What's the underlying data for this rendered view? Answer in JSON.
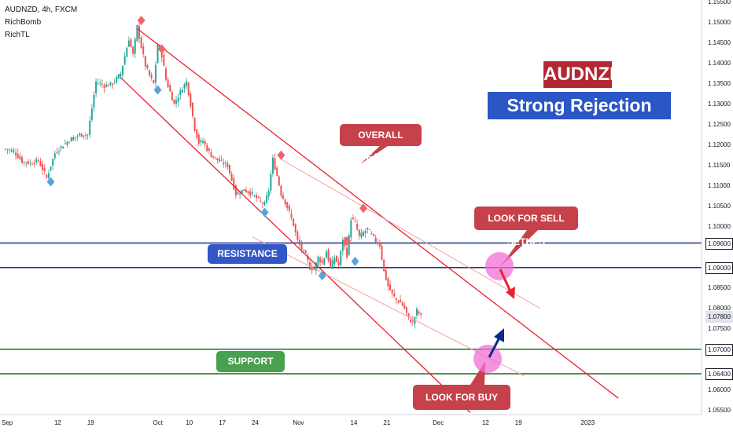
{
  "header": {
    "symbol": "AUDNZD, 4h, FXCM",
    "indicator1": "RichBomb",
    "indicator2": "RichTL"
  },
  "titles": {
    "main": "AUDNZD",
    "sub": "Strong Rejection Zones"
  },
  "annotations": {
    "overall_bearish": "OVERALL BEARISH",
    "sell_setups": "LOOK FOR SELL SETUPS",
    "buy_setups": "LOOK FOR BUY SETUPS",
    "resistance_zone": "RESISTANCE ZONE",
    "support_zone": "SUPPORT ZONE"
  },
  "colors": {
    "up": "#26a69a",
    "down": "#ef5350",
    "channel": "#e8212d",
    "channel_light": "#f3a0a3",
    "resistance": "#1b2f8f",
    "support": "#1f6b21",
    "highlight": "#f06fd6",
    "callout_red": "#c6414a",
    "callout_blue": "#3457c7",
    "callout_green": "#48a14f",
    "marker_red": "#f0646b",
    "marker_blue": "#5aa2dc"
  },
  "chart_data": {
    "type": "candlestick",
    "y_ticks": [
      "1.15500",
      "1.15000",
      "1.14500",
      "1.14000",
      "1.13500",
      "1.13000",
      "1.12500",
      "1.12000",
      "1.11500",
      "1.11000",
      "1.10500",
      "1.10000",
      "1.08500",
      "1.08000",
      "1.07500",
      "1.06000",
      "1.05500"
    ],
    "y_tick_values": [
      1.155,
      1.15,
      1.145,
      1.14,
      1.135,
      1.13,
      1.125,
      1.12,
      1.115,
      1.11,
      1.105,
      1.1,
      1.085,
      1.08,
      1.075,
      1.06,
      1.055
    ],
    "ylim": [
      1.054,
      1.1555
    ],
    "x_ticks": [
      "Sep",
      "12",
      "19",
      "Oct",
      "10",
      "17",
      "24",
      "Nov",
      "14",
      "21",
      "Dec",
      "12",
      "19",
      "2023"
    ],
    "x_tick_index": [
      0,
      13,
      21,
      37,
      45,
      53,
      61,
      71,
      85,
      93,
      105,
      117,
      125,
      141
    ],
    "price_levels": [
      {
        "label": "1.09600",
        "value": 1.096,
        "kind": "resistance"
      },
      {
        "label": "1.09000",
        "value": 1.09,
        "kind": "resistance"
      },
      {
        "label": "1.07800",
        "value": 1.078,
        "kind": "last"
      },
      {
        "label": "1.07000",
        "value": 1.07,
        "kind": "support"
      },
      {
        "label": "1.06400",
        "value": 1.064,
        "kind": "support"
      }
    ],
    "close_path": [
      [
        0,
        1.119
      ],
      [
        2,
        1.1185
      ],
      [
        4,
        1.116
      ],
      [
        6,
        1.1155
      ],
      [
        8,
        1.1162
      ],
      [
        10,
        1.112
      ],
      [
        12,
        1.118
      ],
      [
        14,
        1.12
      ],
      [
        16,
        1.1215
      ],
      [
        18,
        1.1225
      ],
      [
        20,
        1.1225
      ],
      [
        22,
        1.1355
      ],
      [
        24,
        1.1345
      ],
      [
        26,
        1.135
      ],
      [
        28,
        1.1375
      ],
      [
        30,
        1.146
      ],
      [
        31,
        1.142
      ],
      [
        32,
        1.149
      ],
      [
        33,
        1.144
      ],
      [
        34,
        1.1395
      ],
      [
        35,
        1.137
      ],
      [
        36,
        1.135
      ],
      [
        37,
        1.1445
      ],
      [
        38,
        1.142
      ],
      [
        39,
        1.136
      ],
      [
        40,
        1.133
      ],
      [
        41,
        1.13
      ],
      [
        42,
        1.132
      ],
      [
        43,
        1.134
      ],
      [
        44,
        1.1355
      ],
      [
        45,
        1.13
      ],
      [
        46,
        1.124
      ],
      [
        47,
        1.1205
      ],
      [
        48,
        1.121
      ],
      [
        49,
        1.119
      ],
      [
        50,
        1.1175
      ],
      [
        52,
        1.116
      ],
      [
        54,
        1.115
      ],
      [
        56,
        1.108
      ],
      [
        58,
        1.109
      ],
      [
        60,
        1.108
      ],
      [
        62,
        1.106
      ],
      [
        63,
        1.1055
      ],
      [
        64,
        1.109
      ],
      [
        65,
        1.1165
      ],
      [
        66,
        1.1125
      ],
      [
        67,
        1.108
      ],
      [
        68,
        1.106
      ],
      [
        69,
        1.1035
      ],
      [
        70,
        1.1005
      ],
      [
        71,
        1.0965
      ],
      [
        72,
        1.0945
      ],
      [
        73,
        1.093
      ],
      [
        74,
        1.09
      ],
      [
        75,
        1.0895
      ],
      [
        76,
        1.0925
      ],
      [
        77,
        1.091
      ],
      [
        78,
        1.094
      ],
      [
        79,
        1.09
      ],
      [
        80,
        1.0925
      ],
      [
        81,
        1.0905
      ],
      [
        82,
        1.097
      ],
      [
        83,
        1.093
      ],
      [
        84,
        1.102
      ],
      [
        85,
        1.101
      ],
      [
        86,
        1.0975
      ],
      [
        87,
        1.0985
      ],
      [
        88,
        1.0995
      ],
      [
        89,
        1.098
      ],
      [
        90,
        1.0965
      ],
      [
        91,
        1.0955
      ],
      [
        92,
        1.089
      ],
      [
        93,
        1.0855
      ],
      [
        94,
        1.0835
      ],
      [
        95,
        1.082
      ],
      [
        96,
        1.0815
      ],
      [
        97,
        1.08
      ],
      [
        98,
        1.0775
      ],
      [
        99,
        1.0765
      ],
      [
        100,
        1.0795
      ],
      [
        101,
        1.078
      ]
    ],
    "channel_lines": [
      {
        "name": "upper",
        "from": [
          32,
          1.1485
        ],
        "to": [
          149,
          1.058
        ]
      },
      {
        "name": "lower",
        "from": [
          28,
          1.1365
        ],
        "to": [
          113,
          1.0545
        ]
      }
    ],
    "thin_lines": [
      {
        "from": [
          67,
          1.1165
        ],
        "to": [
          130,
          1.08
        ]
      },
      {
        "from": [
          60,
          1.0975
        ],
        "to": [
          126,
          1.0635
        ]
      }
    ],
    "markers_top": [
      [
        33,
        1.1505
      ],
      [
        38,
        1.1435
      ],
      [
        67,
        1.1175
      ],
      [
        87,
        1.1045
      ],
      [
        83,
        1.0965
      ]
    ],
    "markers_bottom": [
      [
        11,
        1.111
      ],
      [
        37,
        1.1335
      ],
      [
        63,
        1.1035
      ],
      [
        77,
        1.088
      ],
      [
        85,
        1.0915
      ]
    ]
  }
}
